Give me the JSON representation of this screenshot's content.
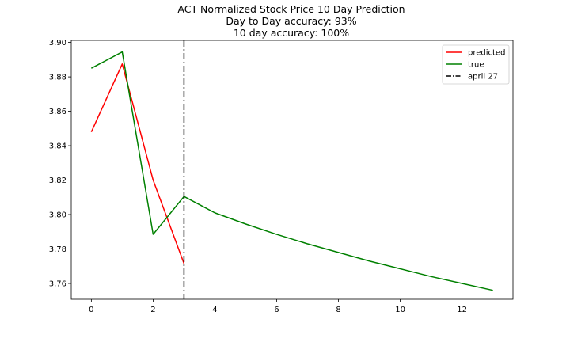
{
  "chart_data": {
    "type": "line",
    "title_lines": [
      "ACT Normalized Stock Price 10 Day Prediction",
      "Day to Day accuracy: 93%",
      "10 day accuracy: 100%"
    ],
    "xlabel": "",
    "ylabel": "",
    "xlim": [
      -0.65,
      13.65
    ],
    "ylim": [
      3.7508,
      3.9012
    ],
    "xticks": [
      0,
      2,
      4,
      6,
      8,
      10,
      12
    ],
    "yticks": [
      3.76,
      3.78,
      3.8,
      3.82,
      3.84,
      3.86,
      3.88,
      3.9
    ],
    "grid": false,
    "legend_position": "top-right",
    "series": [
      {
        "name": "predicted",
        "color": "#ff0000",
        "style": "solid",
        "points": [
          [
            0,
            3.848
          ],
          [
            1,
            3.8875
          ],
          [
            2,
            3.82
          ],
          [
            3,
            3.7715
          ]
        ]
      },
      {
        "name": "true",
        "color": "#008000",
        "style": "solid",
        "points": [
          [
            0,
            3.885
          ],
          [
            1,
            3.8945
          ],
          [
            2,
            3.7885
          ],
          [
            3,
            3.8105
          ],
          [
            4,
            3.801
          ],
          [
            5,
            3.7945
          ],
          [
            6,
            3.7885
          ],
          [
            7,
            3.783
          ],
          [
            8,
            3.778
          ],
          [
            9,
            3.773
          ],
          [
            10,
            3.7685
          ],
          [
            11,
            3.764
          ],
          [
            12,
            3.76
          ],
          [
            13,
            3.756
          ]
        ]
      }
    ],
    "vline": {
      "name": "april 27",
      "x": 3,
      "color": "#000000",
      "style": "dashdot"
    }
  }
}
